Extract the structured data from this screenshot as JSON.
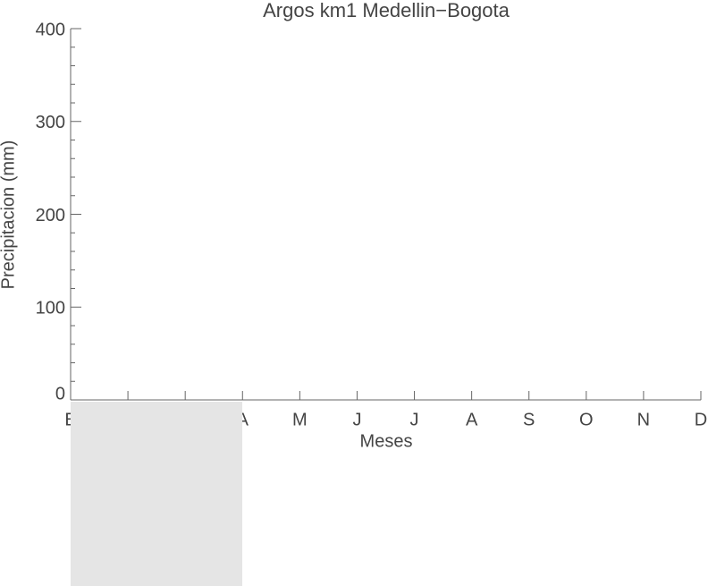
{
  "chart_data": {
    "type": "line",
    "title": "Argos km1 Medellin−Bogota",
    "x_label": "Meses",
    "y_label": "Precipitacion (mm)",
    "categories": [
      "E",
      null,
      null,
      "A",
      "M",
      "J",
      "J",
      "A",
      "S",
      "O",
      "N",
      "D"
    ],
    "series": [],
    "ylim": [
      0,
      400
    ],
    "yticks": [
      0,
      100,
      200,
      300,
      400
    ],
    "grid": false
  }
}
